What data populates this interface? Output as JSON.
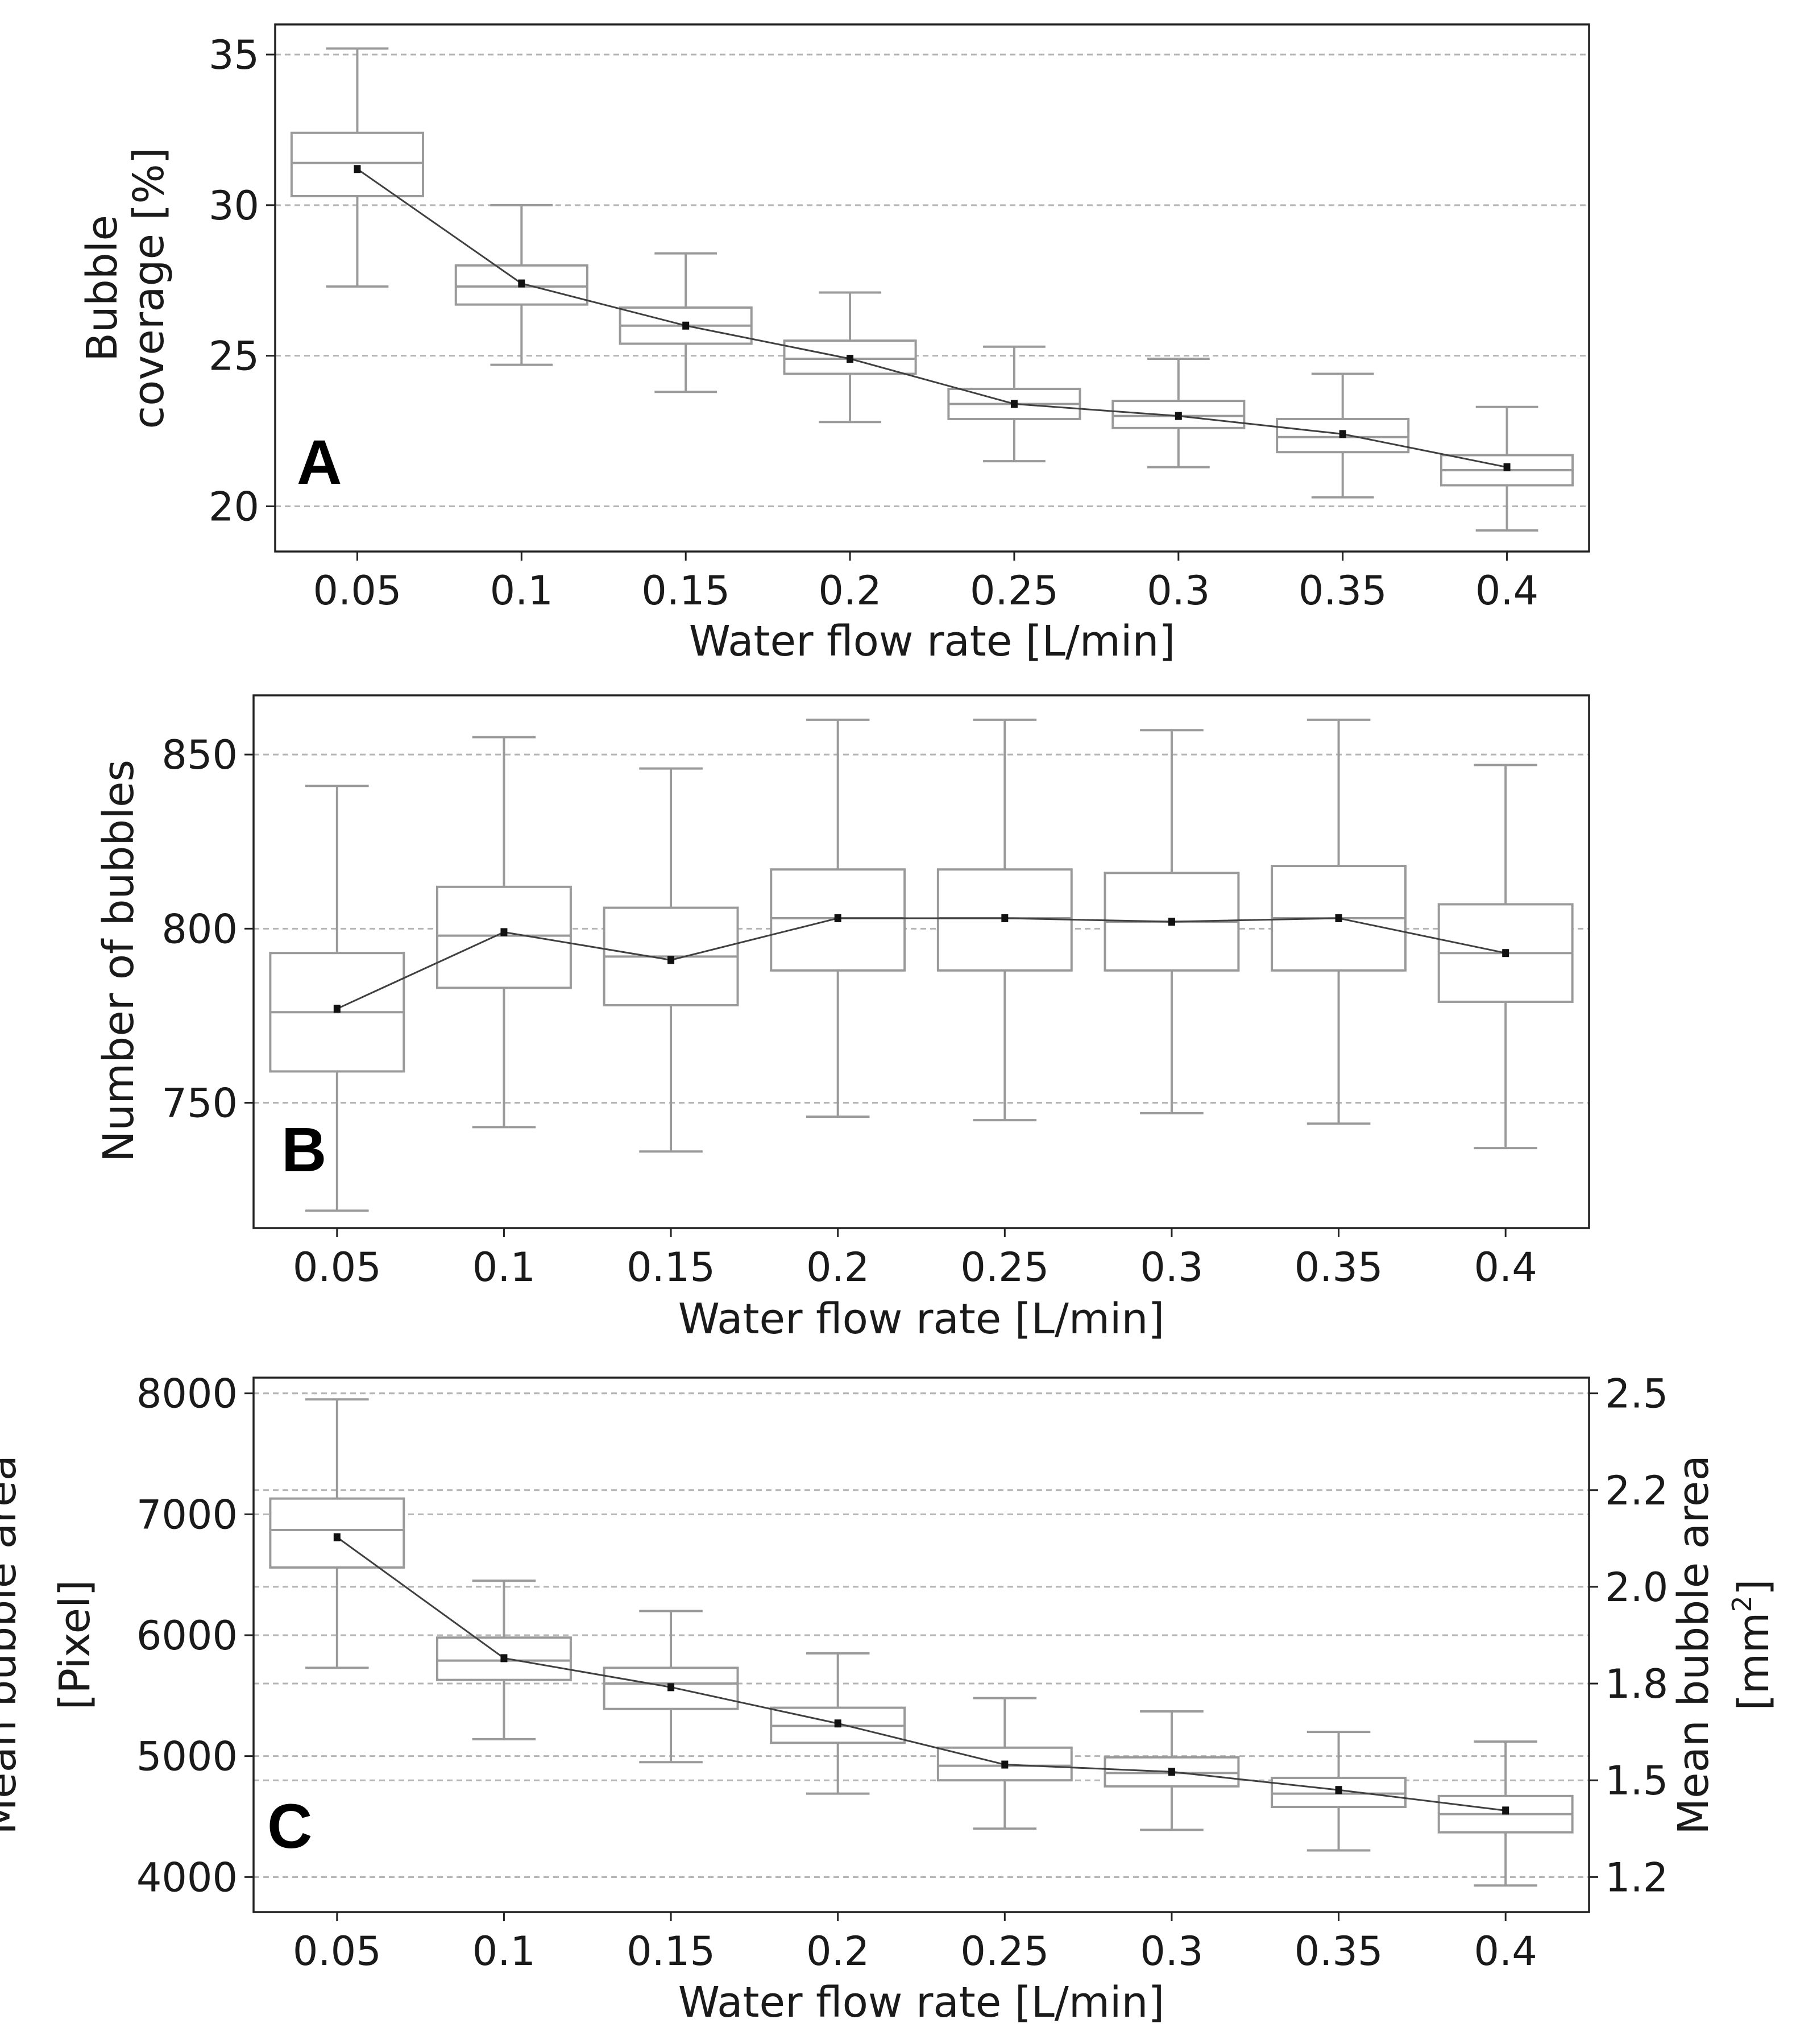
{
  "chart_data": [
    {
      "type": "box",
      "panel_label": "A",
      "title": "",
      "xlabel": "Water flow rate [L/min]",
      "ylabel": [
        "Bubble",
        "coverage [%]"
      ],
      "ylim": [
        18.5,
        36
      ],
      "yticks": [
        20,
        25,
        30,
        35
      ],
      "grid": "horizontal-dashed",
      "categories": [
        "0.05",
        "0.1",
        "0.15",
        "0.2",
        "0.25",
        "0.3",
        "0.35",
        "0.4"
      ],
      "boxes": [
        {
          "whisker_low": 27.3,
          "q1": 30.3,
          "median": 31.4,
          "q3": 32.4,
          "whisker_high": 35.2
        },
        {
          "whisker_low": 24.7,
          "q1": 26.7,
          "median": 27.3,
          "q3": 28.0,
          "whisker_high": 30.0
        },
        {
          "whisker_low": 23.8,
          "q1": 25.4,
          "median": 26.0,
          "q3": 26.6,
          "whisker_high": 28.4
        },
        {
          "whisker_low": 22.8,
          "q1": 24.4,
          "median": 24.9,
          "q3": 25.5,
          "whisker_high": 27.1
        },
        {
          "whisker_low": 21.5,
          "q1": 22.9,
          "median": 23.4,
          "q3": 23.9,
          "whisker_high": 25.3
        },
        {
          "whisker_low": 21.3,
          "q1": 22.6,
          "median": 23.0,
          "q3": 23.5,
          "whisker_high": 24.9
        },
        {
          "whisker_low": 20.3,
          "q1": 21.8,
          "median": 22.3,
          "q3": 22.9,
          "whisker_high": 24.4
        },
        {
          "whisker_low": 19.2,
          "q1": 20.7,
          "median": 21.2,
          "q3": 21.7,
          "whisker_high": 23.3
        }
      ],
      "means": [
        31.2,
        27.4,
        26.0,
        24.9,
        23.4,
        23.0,
        22.4,
        21.3
      ]
    },
    {
      "type": "box",
      "panel_label": "B",
      "title": "",
      "xlabel": "Water flow rate [L/min]",
      "ylabel": [
        "Number of bubbles"
      ],
      "ylim": [
        714,
        867
      ],
      "yticks": [
        750,
        800,
        850
      ],
      "grid": "horizontal-dashed",
      "categories": [
        "0.05",
        "0.1",
        "0.15",
        "0.2",
        "0.25",
        "0.3",
        "0.35",
        "0.4"
      ],
      "boxes": [
        {
          "whisker_low": 719,
          "q1": 759,
          "median": 776,
          "q3": 793,
          "whisker_high": 841
        },
        {
          "whisker_low": 743,
          "q1": 783,
          "median": 798,
          "q3": 812,
          "whisker_high": 855
        },
        {
          "whisker_low": 736,
          "q1": 778,
          "median": 792,
          "q3": 806,
          "whisker_high": 846
        },
        {
          "whisker_low": 746,
          "q1": 788,
          "median": 803,
          "q3": 817,
          "whisker_high": 860
        },
        {
          "whisker_low": 745,
          "q1": 788,
          "median": 803,
          "q3": 817,
          "whisker_high": 860
        },
        {
          "whisker_low": 747,
          "q1": 788,
          "median": 802,
          "q3": 816,
          "whisker_high": 857
        },
        {
          "whisker_low": 744,
          "q1": 788,
          "median": 803,
          "q3": 818,
          "whisker_high": 860
        },
        {
          "whisker_low": 737,
          "q1": 779,
          "median": 793,
          "q3": 807,
          "whisker_high": 847
        }
      ],
      "means": [
        777,
        799,
        791,
        803,
        803,
        802,
        803,
        793
      ]
    },
    {
      "type": "box",
      "panel_label": "C",
      "title": "",
      "xlabel": "Water flow rate [L/min]",
      "ylabel": [
        "Mean bubble area",
        "[Pixel]"
      ],
      "ylim": [
        3710,
        8130
      ],
      "yticks": [
        4000,
        5000,
        6000,
        7000,
        8000
      ],
      "ylabel_right": [
        "Mean bubble area",
        "[mm",
        "2",
        "]"
      ],
      "yticks_right": [
        "2.5",
        "2.2",
        "2.0",
        "1.8",
        "1.5",
        "1.2"
      ],
      "grid": "horizontal-dashed",
      "categories": [
        "0.05",
        "0.1",
        "0.15",
        "0.2",
        "0.25",
        "0.3",
        "0.35",
        "0.4"
      ],
      "boxes": [
        {
          "whisker_low": 5730,
          "q1": 6560,
          "median": 6870,
          "q3": 7130,
          "whisker_high": 7950
        },
        {
          "whisker_low": 5140,
          "q1": 5630,
          "median": 5790,
          "q3": 5980,
          "whisker_high": 6450
        },
        {
          "whisker_low": 4950,
          "q1": 5390,
          "median": 5600,
          "q3": 5730,
          "whisker_high": 6200
        },
        {
          "whisker_low": 4690,
          "q1": 5110,
          "median": 5250,
          "q3": 5400,
          "whisker_high": 5850
        },
        {
          "whisker_low": 4400,
          "q1": 4800,
          "median": 4920,
          "q3": 5070,
          "whisker_high": 5480
        },
        {
          "whisker_low": 4390,
          "q1": 4750,
          "median": 4860,
          "q3": 4990,
          "whisker_high": 5370
        },
        {
          "whisker_low": 4220,
          "q1": 4580,
          "median": 4690,
          "q3": 4820,
          "whisker_high": 5200
        },
        {
          "whisker_low": 3930,
          "q1": 4370,
          "median": 4520,
          "q3": 4670,
          "whisker_high": 5120
        }
      ],
      "means": [
        6810,
        5810,
        5570,
        5270,
        4930,
        4870,
        4720,
        4550
      ]
    }
  ]
}
